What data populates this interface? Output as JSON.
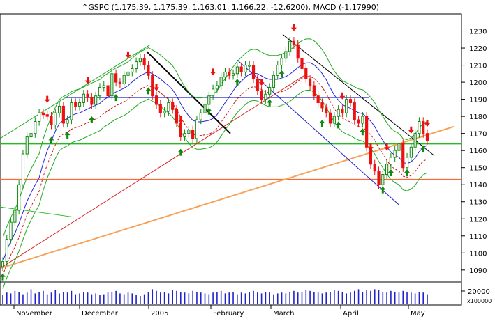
{
  "chart_data": {
    "type": "candlestick",
    "title": "^GSPC (1,175.39, 1,175.39, 1,163.01, 1,166.22, -12.6200), MACD (-1.17990)",
    "x_labels": [
      "November",
      "December",
      "2005",
      "February",
      "March",
      "April",
      "May"
    ],
    "y_ticks": [
      1090,
      1100,
      1110,
      1120,
      1130,
      1140,
      1150,
      1160,
      1170,
      1180,
      1190,
      1200,
      1210,
      1220,
      1230
    ],
    "ylim": [
      1083,
      1240
    ],
    "volume_tick": "20000",
    "volume_unit": "x100000",
    "horizontal_levels": [
      {
        "value": 1164,
        "color": "#22bb22"
      },
      {
        "value": 1143,
        "color": "#ff6633"
      },
      {
        "value": 1191,
        "color": "#2222cc"
      }
    ],
    "colors": {
      "up": "#118811",
      "down": "#ee1111",
      "sma": "#2222dd",
      "band": "#22aa22",
      "ema": "#cc1111",
      "trend_orange": "#f7a35c",
      "trend_red": "#dd2222"
    },
    "closes": [
      1095,
      1108,
      1118,
      1125,
      1140,
      1158,
      1168,
      1170,
      1177,
      1182,
      1181,
      1180,
      1175,
      1182,
      1186,
      1176,
      1178,
      1188,
      1186,
      1188,
      1193,
      1191,
      1187,
      1192,
      1197,
      1198,
      1192,
      1205,
      1200,
      1199,
      1204,
      1206,
      1208,
      1212,
      1214,
      1210,
      1204,
      1192,
      1187,
      1182,
      1183,
      1188,
      1184,
      1176,
      1168,
      1170,
      1172,
      1167,
      1178,
      1182,
      1187,
      1192,
      1196,
      1198,
      1203,
      1206,
      1204,
      1205,
      1209,
      1206,
      1210,
      1210,
      1202,
      1195,
      1190,
      1193,
      1197,
      1204,
      1210,
      1214,
      1218,
      1224,
      1222,
      1214,
      1208,
      1202,
      1198,
      1192,
      1188,
      1185,
      1182,
      1176,
      1180,
      1184,
      1182,
      1190,
      1188,
      1178,
      1176,
      1180,
      1162,
      1152,
      1148,
      1140,
      1146,
      1152,
      1156,
      1160,
      1164,
      1150,
      1156,
      1162,
      1170,
      1177,
      1170,
      1166
    ],
    "volume": [
      11,
      14,
      13,
      16,
      15,
      12,
      14,
      18,
      13,
      15,
      16,
      12,
      14,
      17,
      13,
      15,
      14,
      16,
      12,
      13,
      15,
      14,
      12,
      13,
      11,
      12,
      14,
      15,
      16,
      13,
      12,
      14,
      13,
      11,
      10,
      12,
      15,
      18,
      16,
      14,
      15,
      13,
      17,
      16,
      15,
      14,
      13,
      16,
      15,
      14,
      13,
      12,
      14,
      15,
      16,
      13,
      14,
      15,
      12,
      14,
      13,
      15,
      16,
      14,
      13,
      15,
      14,
      12,
      13,
      14,
      13,
      15,
      16,
      14,
      15,
      17,
      16,
      15,
      14,
      13,
      14,
      15,
      17,
      16,
      15,
      13,
      14,
      16,
      18,
      15,
      17,
      16,
      18,
      17,
      15,
      14,
      16,
      15,
      14,
      16,
      15,
      14,
      13,
      15,
      14,
      12
    ],
    "buy_signal_indices": [
      0,
      12,
      16,
      22,
      28,
      36,
      44,
      51,
      58,
      66,
      69,
      79,
      83,
      89,
      94,
      96,
      100,
      104
    ],
    "sell_signal_indices": [
      11,
      21,
      31,
      38,
      44,
      52,
      64,
      72,
      84,
      91,
      95,
      101,
      105
    ]
  }
}
